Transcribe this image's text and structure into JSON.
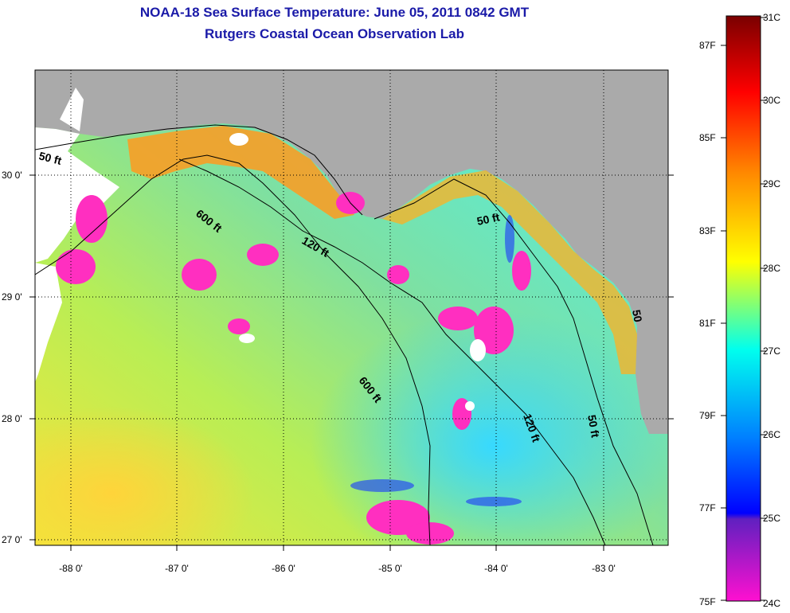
{
  "title": {
    "line1": "NOAA-18 Sea Surface Temperature:  June 05, 2011 0842 GMT",
    "line2": "Rutgers Coastal Ocean Observation Lab"
  },
  "map": {
    "lon_labels": [
      "-88 0'",
      "-87 0'",
      "-86 0'",
      "-85 0'",
      "-84 0'",
      "-83 0'"
    ],
    "lat_labels": [
      "30 0'",
      "29 0'",
      "28 0'",
      "27 0'"
    ],
    "isobaths": [
      {
        "label": "50 ft"
      },
      {
        "label": "600 ft"
      },
      {
        "label": "120 ft"
      },
      {
        "label": "50 ft"
      },
      {
        "label": "600 ft"
      },
      {
        "label": "120 ft"
      },
      {
        "label": "50 ft"
      },
      {
        "label": "50"
      }
    ],
    "colors": {
      "land": "#aaaaaa",
      "cloud_mask": "#ffffff",
      "grid": "#000000"
    }
  },
  "colorbar": {
    "fahrenheit_labels": [
      "87F",
      "85F",
      "83F",
      "81F",
      "79F",
      "77F",
      "75F"
    ],
    "celsius_labels": [
      "31C",
      "30C",
      "29C",
      "28C",
      "27C",
      "26C",
      "25C",
      "24C"
    ],
    "stops": [
      "#800000",
      "#ff0000",
      "#ff8000",
      "#ffff00",
      "#00ffff",
      "#0000ff",
      "#8000c0",
      "#ff00ff"
    ]
  }
}
